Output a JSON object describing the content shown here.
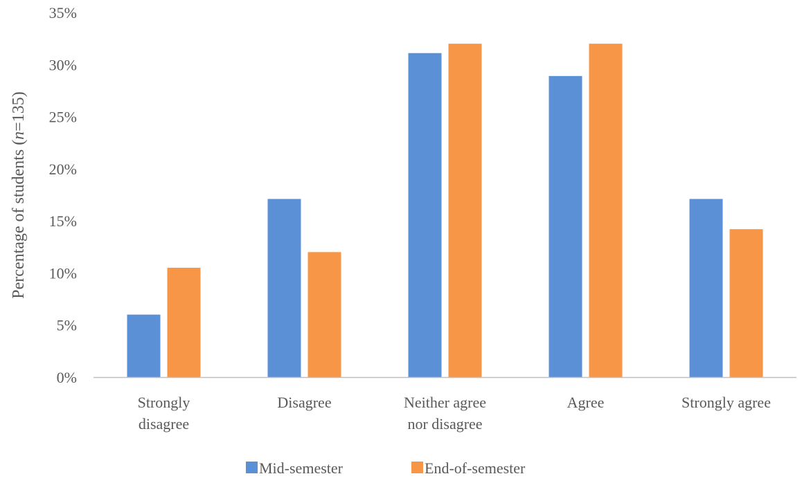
{
  "chart_data": {
    "type": "bar",
    "title": "",
    "xlabel": "",
    "ylabel": {
      "parts": [
        "Percentage of students (",
        "n",
        "=135)"
      ]
    },
    "categories": [
      [
        "Strongly",
        "disagree"
      ],
      [
        "Disagree"
      ],
      [
        "Neither agree",
        "nor disagree"
      ],
      [
        "Agree"
      ],
      [
        "Strongly agree"
      ]
    ],
    "series": [
      {
        "name": "Mid-semester",
        "color": "#5B8FD6",
        "values": [
          6.0,
          17.1,
          31.1,
          28.9,
          17.1
        ]
      },
      {
        "name": "End-of-semester",
        "color": "#F79646",
        "values": [
          10.5,
          12.0,
          32.0,
          32.0,
          14.2
        ]
      }
    ],
    "ylim": [
      0,
      35
    ],
    "yticks": [
      0,
      5,
      10,
      15,
      20,
      25,
      30,
      35
    ],
    "ytick_format": "percent",
    "grid": false,
    "legend_position": "bottom"
  }
}
